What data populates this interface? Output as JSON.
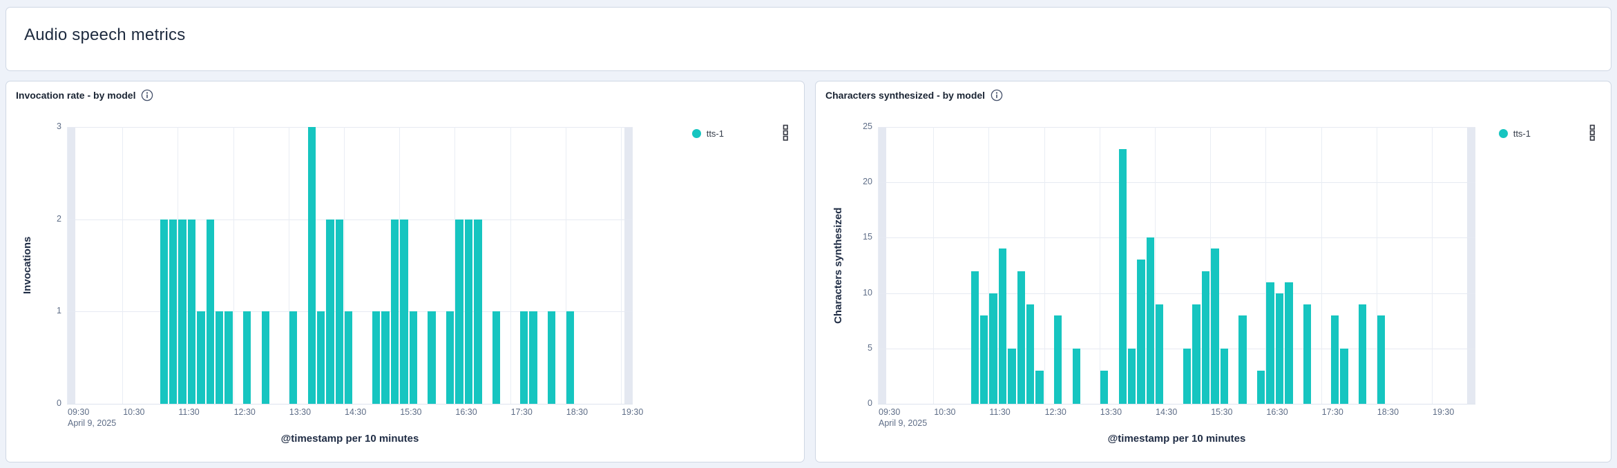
{
  "page": {
    "title": "Audio speech metrics"
  },
  "legend_series_label": "tts-1",
  "accent_color": "#16c5c0",
  "chart_data": [
    {
      "type": "bar",
      "title": "Invocation rate - by model",
      "xlabel": "@timestamp per 10 minutes",
      "ylabel": "Invocations",
      "date_label": "April 9, 2025",
      "legend_position": "right",
      "grid": true,
      "ylim": [
        0,
        3
      ],
      "yticks": [
        0,
        1,
        2,
        3
      ],
      "xticks": [
        "09:30",
        "10:30",
        "11:30",
        "12:30",
        "13:30",
        "14:30",
        "15:30",
        "16:30",
        "17:30",
        "18:30",
        "19:30"
      ],
      "bucket_minutes": 10,
      "series": [
        {
          "name": "tts-1",
          "color": "#16c5c0",
          "x": [
            "11:10",
            "11:20",
            "11:30",
            "11:40",
            "11:50",
            "12:00",
            "12:10",
            "12:20",
            "12:40",
            "13:00",
            "13:30",
            "13:50",
            "14:00",
            "14:10",
            "14:20",
            "14:30",
            "15:00",
            "15:10",
            "15:20",
            "15:30",
            "15:40",
            "16:00",
            "16:20",
            "16:30",
            "16:40",
            "16:50",
            "17:10",
            "17:40",
            "17:50",
            "18:10",
            "18:30"
          ],
          "values": [
            2,
            2,
            2,
            2,
            1,
            2,
            1,
            1,
            1,
            1,
            1,
            3,
            1,
            2,
            2,
            1,
            1,
            1,
            2,
            2,
            1,
            1,
            1,
            2,
            2,
            2,
            1,
            1,
            1,
            1,
            1
          ]
        }
      ]
    },
    {
      "type": "bar",
      "title": "Characters synthesized - by model",
      "xlabel": "@timestamp per 10 minutes",
      "ylabel": "Characters synthesized",
      "date_label": "April 9, 2025",
      "legend_position": "right",
      "grid": true,
      "ylim": [
        0,
        25
      ],
      "yticks": [
        0,
        5,
        10,
        15,
        20,
        25
      ],
      "xticks": [
        "09:30",
        "10:30",
        "11:30",
        "12:30",
        "13:30",
        "14:30",
        "15:30",
        "16:30",
        "17:30",
        "18:30",
        "19:30"
      ],
      "bucket_minutes": 10,
      "series": [
        {
          "name": "tts-1",
          "color": "#16c5c0",
          "x": [
            "11:10",
            "11:20",
            "11:30",
            "11:40",
            "11:50",
            "12:00",
            "12:10",
            "12:20",
            "12:40",
            "13:00",
            "13:30",
            "13:50",
            "14:00",
            "14:10",
            "14:20",
            "14:30",
            "15:00",
            "15:10",
            "15:20",
            "15:30",
            "15:40",
            "16:00",
            "16:20",
            "16:30",
            "16:40",
            "16:50",
            "17:10",
            "17:40",
            "17:50",
            "18:10",
            "18:30"
          ],
          "values": [
            12,
            8,
            10,
            14,
            5,
            12,
            9,
            3,
            8,
            5,
            3,
            23,
            5,
            13,
            15,
            9,
            5,
            9,
            12,
            14,
            5,
            8,
            3,
            11,
            10,
            11,
            9,
            8,
            5,
            9,
            8
          ]
        }
      ]
    }
  ]
}
